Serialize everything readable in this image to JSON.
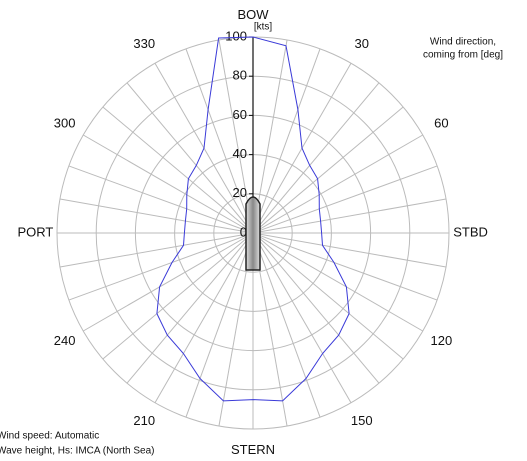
{
  "chart_data": {
    "type": "polar",
    "r_unit": "[kts]",
    "rlim": [
      0,
      100
    ],
    "rticks": [
      0,
      20,
      40,
      60,
      80,
      100
    ],
    "angle_ticks": [
      {
        "value": 0,
        "label": "BOW"
      },
      30,
      60,
      {
        "value": 90,
        "label": "STBD"
      },
      120,
      150,
      {
        "value": 180,
        "label": "STERN"
      },
      210,
      240,
      {
        "value": 270,
        "label": "PORT"
      },
      300,
      330
    ],
    "angles": [
      0,
      10,
      20,
      30,
      40,
      50,
      60,
      70,
      80,
      90,
      100,
      110,
      120,
      130,
      140,
      150,
      160,
      170,
      180,
      190,
      200,
      210,
      220,
      230,
      240,
      250,
      260,
      270,
      280,
      290,
      300,
      310,
      320,
      330,
      340,
      350
    ],
    "series": [
      {
        "color": "#3a3ad8",
        "values": [
          100,
          97,
          67,
          50,
          45,
          43,
          39,
          36,
          35,
          35,
          36,
          44,
          55,
          64,
          68,
          71,
          79,
          87,
          85,
          87,
          79,
          71,
          68,
          64,
          55,
          44,
          36,
          35,
          35,
          36,
          39,
          43,
          45,
          50,
          67,
          101
        ]
      }
    ],
    "annotations": [
      "Wind direction,",
      "coming from [deg]",
      "Wind speed: Automatic",
      "Wave height, Hs: IMCA (North Sea)"
    ]
  }
}
